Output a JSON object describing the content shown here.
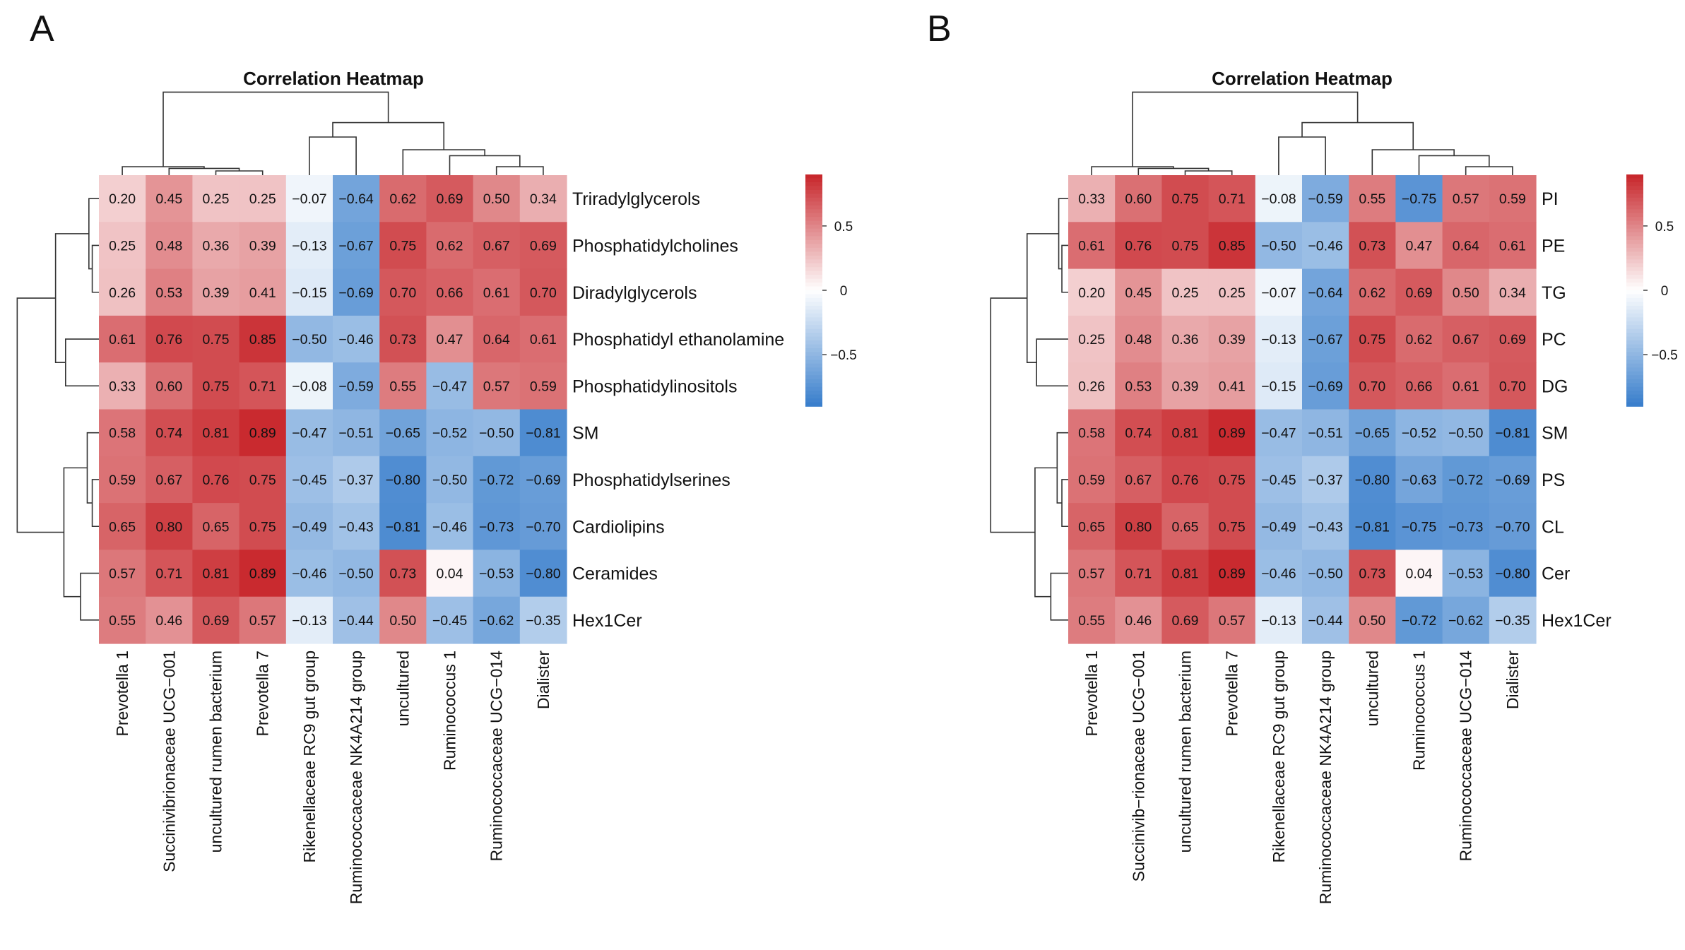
{
  "chart_data": [
    {
      "type": "heatmap",
      "panel": "A",
      "title": "Correlation Heatmap",
      "columns": [
        "Prevotella 1",
        "Succinivibrionaceae UCG−001",
        "uncultured rumen bacterium",
        "Prevotella 7",
        "Rikenellaceae RC9 gut group",
        "Ruminococcaceae NK4A214 group",
        "uncultured",
        "Ruminococcus 1",
        "Ruminococcaceae UCG−014",
        "Dialister"
      ],
      "rows": [
        "Triradylglycerols",
        "Phosphatidylcholines",
        "Diradylglycerols",
        "Phosphatidyl ethanolamine",
        "Phosphatidylinositols",
        "SM",
        "Phosphatidylserines",
        "Cardiolipins",
        "Ceramides",
        "Hex1Cer"
      ],
      "values": [
        [
          0.2,
          0.45,
          0.25,
          0.25,
          -0.07,
          -0.64,
          0.62,
          0.69,
          0.5,
          0.34
        ],
        [
          0.25,
          0.48,
          0.36,
          0.39,
          -0.13,
          -0.67,
          0.75,
          0.62,
          0.67,
          0.69
        ],
        [
          0.26,
          0.53,
          0.39,
          0.41,
          -0.15,
          -0.69,
          0.7,
          0.66,
          0.61,
          0.7
        ],
        [
          0.61,
          0.76,
          0.75,
          0.85,
          -0.5,
          -0.46,
          0.73,
          0.47,
          0.64,
          0.61
        ],
        [
          0.33,
          0.6,
          0.75,
          0.71,
          -0.08,
          -0.59,
          0.55,
          -0.47,
          0.57,
          0.59
        ],
        [
          0.58,
          0.74,
          0.81,
          0.89,
          -0.47,
          -0.51,
          -0.65,
          -0.52,
          -0.5,
          -0.81
        ],
        [
          0.59,
          0.67,
          0.76,
          0.75,
          -0.45,
          -0.37,
          -0.8,
          -0.5,
          -0.72,
          -0.69
        ],
        [
          0.65,
          0.8,
          0.65,
          0.75,
          -0.49,
          -0.43,
          -0.81,
          -0.46,
          -0.73,
          -0.7
        ],
        [
          0.57,
          0.71,
          0.81,
          0.89,
          -0.46,
          -0.5,
          0.73,
          0.04,
          -0.53,
          -0.8
        ],
        [
          0.55,
          0.46,
          0.69,
          0.57,
          -0.13,
          -0.44,
          0.5,
          -0.45,
          -0.62,
          -0.35
        ]
      ],
      "legend": {
        "ticks": [
          "0.5",
          "0",
          "−0.5"
        ],
        "tick_values": [
          0.5,
          0,
          -0.5
        ],
        "range": [
          -0.9,
          0.9
        ]
      }
    },
    {
      "type": "heatmap",
      "panel": "B",
      "title": "Correlation Heatmap",
      "columns": [
        "Prevotella 1",
        "Succinivib−rionaceae UCG−001",
        "uncultured rumen bacterium",
        "Prevotella 7",
        "Rikenellaceae RC9 gut group",
        "Ruminococcaceae NK4A214 group",
        "uncultured",
        "Ruminococcus 1",
        "Ruminococcaceae UCG−014",
        "Dialister"
      ],
      "rows": [
        "PI",
        "PE",
        "TG",
        "PC",
        "DG",
        "SM",
        "PS",
        "CL",
        "Cer",
        "Hex1Cer"
      ],
      "values": [
        [
          0.33,
          0.6,
          0.75,
          0.71,
          -0.08,
          -0.59,
          0.55,
          -0.75,
          0.57,
          0.59
        ],
        [
          0.61,
          0.76,
          0.75,
          0.85,
          -0.5,
          -0.46,
          0.73,
          0.47,
          0.64,
          0.61
        ],
        [
          0.2,
          0.45,
          0.25,
          0.25,
          -0.07,
          -0.64,
          0.62,
          0.69,
          0.5,
          0.34
        ],
        [
          0.25,
          0.48,
          0.36,
          0.39,
          -0.13,
          -0.67,
          0.75,
          0.62,
          0.67,
          0.69
        ],
        [
          0.26,
          0.53,
          0.39,
          0.41,
          -0.15,
          -0.69,
          0.7,
          0.66,
          0.61,
          0.7
        ],
        [
          0.58,
          0.74,
          0.81,
          0.89,
          -0.47,
          -0.51,
          -0.65,
          -0.52,
          -0.5,
          -0.81
        ],
        [
          0.59,
          0.67,
          0.76,
          0.75,
          -0.45,
          -0.37,
          -0.8,
          -0.63,
          -0.72,
          -0.69
        ],
        [
          0.65,
          0.8,
          0.65,
          0.75,
          -0.49,
          -0.43,
          -0.81,
          -0.75,
          -0.73,
          -0.7
        ],
        [
          0.57,
          0.71,
          0.81,
          0.89,
          -0.46,
          -0.5,
          0.73,
          0.04,
          -0.53,
          -0.8
        ],
        [
          0.55,
          0.46,
          0.69,
          0.57,
          -0.13,
          -0.44,
          0.5,
          -0.72,
          -0.62,
          -0.35
        ]
      ],
      "legend": {
        "ticks": [
          "0.5",
          "0",
          "−0.5"
        ],
        "tick_values": [
          0.5,
          0,
          -0.5
        ],
        "range": [
          -0.9,
          0.9
        ]
      }
    }
  ],
  "colors": {
    "positive": "#c8282d",
    "neutral": "#ffffff",
    "negative": "#3a7fcc"
  }
}
